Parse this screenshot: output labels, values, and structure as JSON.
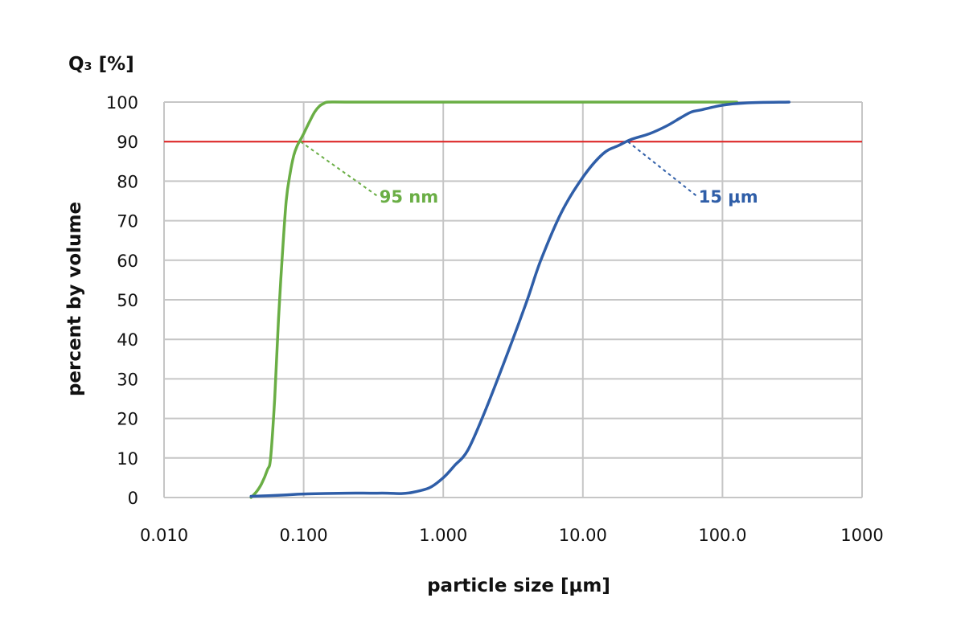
{
  "chart_data": {
    "type": "line",
    "title": "",
    "y_axis_title": "Q₃ [%]",
    "ylabel": "percent by volume",
    "xlabel": "particle size [μm]",
    "x_scale": "log",
    "xlim": [
      0.01,
      1000
    ],
    "ylim": [
      0,
      100
    ],
    "grid": true,
    "x_tick_labels": [
      "0.010",
      "0.100",
      "1.000",
      "10.00",
      "100.0",
      "1000"
    ],
    "x_tick_values": [
      0.01,
      0.1,
      1,
      10,
      100,
      1000
    ],
    "y_ticks": [
      0,
      10,
      20,
      30,
      40,
      50,
      60,
      70,
      80,
      90,
      100
    ],
    "reference_line": {
      "y": 90,
      "color": "#e02020"
    },
    "series": [
      {
        "color": "#6aae45",
        "x": [
          0.042,
          0.046,
          0.05,
          0.055,
          0.058,
          0.062,
          0.066,
          0.07,
          0.075,
          0.08,
          0.085,
          0.09,
          0.095,
          0.1,
          0.11,
          0.12,
          0.13,
          0.14,
          0.15,
          0.2,
          0.5,
          1,
          10,
          100,
          120
        ],
        "y": [
          0,
          1.5,
          3.5,
          7,
          10,
          25,
          45,
          60,
          75,
          82,
          86.5,
          89,
          90.5,
          92,
          95,
          97.5,
          99,
          99.7,
          100,
          100,
          100,
          100,
          100,
          100,
          100
        ]
      },
      {
        "color": "#2f5ea8",
        "x": [
          0.042,
          0.07,
          0.1,
          0.2,
          0.3,
          0.4,
          0.5,
          0.6,
          0.8,
          1,
          1.2,
          1.5,
          2,
          3,
          4,
          5,
          7,
          10,
          14,
          18,
          22,
          30,
          40,
          50,
          60,
          70,
          100,
          150,
          300
        ],
        "y": [
          0.3,
          0.6,
          0.9,
          1.1,
          1.1,
          1.1,
          1.0,
          1.3,
          2.5,
          5,
          8,
          12,
          22,
          38,
          50,
          60,
          72,
          81,
          87,
          89,
          90.5,
          92,
          94,
          96,
          97.5,
          98,
          99.2,
          99.8,
          100
        ]
      }
    ],
    "annotations": [
      {
        "text": "95 nm",
        "color": "#6aae45",
        "x": 0.095,
        "y": 90
      },
      {
        "text": "15 μm",
        "color": "#2f5ea8",
        "x": 21,
        "y": 90
      }
    ]
  }
}
